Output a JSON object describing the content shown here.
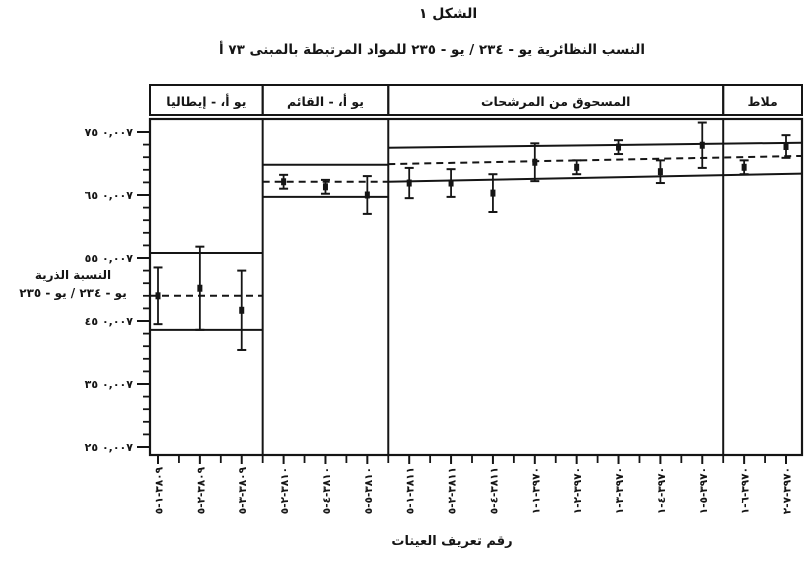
{
  "colors": {
    "ink": "#151515",
    "paper": "#ffffff"
  },
  "chart_data": {
    "type": "scatter",
    "title": "الشكل ١",
    "subtitle": "النسب النظائرية يو - ٢٣٤ / يو - ٢٣٥ للمواد المرتبطة بالمبنى ٧٣ أ",
    "xlabel": "رقم تعريف العينات",
    "ylabel_line1": "النسبة الذرية",
    "ylabel_line2": "يو - ٢٣٤ / يو - ٢٣٥",
    "ylim": [
      0.00724,
      0.00777
    ],
    "grid": false,
    "legend": null,
    "minor_ytick_step": 2e-05,
    "yticks": [
      {
        "value": 0.00775,
        "label": "٠,٠٠٧ ٧٥"
      },
      {
        "value": 0.00765,
        "label": "٠,٠٠٧ ٦٥"
      },
      {
        "value": 0.00755,
        "label": "٠,٠٠٧ ٥٥"
      },
      {
        "value": 0.00745,
        "label": "٠,٠٠٧ ٤٥"
      },
      {
        "value": 0.00735,
        "label": "٠,٠٠٧ ٣٥"
      },
      {
        "value": 0.00725,
        "label": "٠,٠٠٧ ٢٥"
      }
    ],
    "panels": [
      {
        "label": "يو أ، - إيطاليا"
      },
      {
        "label": "يو أ، - القائم"
      },
      {
        "label": "المسحوق من المرشحات"
      },
      {
        "label": "ملاط"
      }
    ],
    "bands": [
      {
        "panels": [
          0,
          0
        ],
        "upper": [
          0.007558,
          0.007558
        ],
        "center": [
          0.00749,
          0.00749
        ],
        "lower": [
          0.007436,
          0.007436
        ]
      },
      {
        "panels": [
          1,
          1
        ],
        "upper": [
          0.007698,
          0.007698
        ],
        "center": [
          0.007671,
          0.007671
        ],
        "lower": [
          0.007647,
          0.007647
        ]
      },
      {
        "panels": [
          2,
          3
        ],
        "upper": [
          0.007725,
          0.007733
        ],
        "center": [
          0.007699,
          0.007712
        ],
        "lower": [
          0.007671,
          0.007684
        ]
      }
    ],
    "points": [
      {
        "id": "٣٨٠٩-١-٥",
        "value": 0.00749,
        "error": 4.5e-05,
        "panel": 0
      },
      {
        "id": "٣٨٠٩-٢-٥",
        "value": 0.007502,
        "error": 6.6e-05,
        "panel": 0
      },
      {
        "id": "٣٨٠٩-٣-٥",
        "value": 0.007467,
        "error": 6.3e-05,
        "panel": 0
      },
      {
        "id": "٣٨١٠-٢-٥",
        "value": 0.007671,
        "error": 1.1e-05,
        "panel": 1
      },
      {
        "id": "٣٨١٠-٤-٥",
        "value": 0.007663,
        "error": 1.1e-05,
        "panel": 1
      },
      {
        "id": "٣٨١٠-٥-٥",
        "value": 0.00765,
        "error": 3e-05,
        "panel": 1
      },
      {
        "id": "٣٨١١-١-٥",
        "value": 0.007669,
        "error": 2.4e-05,
        "panel": 2
      },
      {
        "id": "٣٨١١-٢-٥",
        "value": 0.007669,
        "error": 2.2e-05,
        "panel": 2
      },
      {
        "id": "٣٨١١-٤-٥",
        "value": 0.007653,
        "error": 3e-05,
        "panel": 2
      },
      {
        "id": "٣٩٧٠-١-١",
        "value": 0.007702,
        "error": 3e-05,
        "panel": 2
      },
      {
        "id": "٣٩٧٠-٢-١",
        "value": 0.007694,
        "error": 1.1e-05,
        "panel": 2
      },
      {
        "id": "٣٩٧٠-٣-١",
        "value": 0.007726,
        "error": 1.1e-05,
        "panel": 2
      },
      {
        "id": "٣٩٧٠-٤-١",
        "value": 0.007687,
        "error": 1.8e-05,
        "panel": 2
      },
      {
        "id": "٣٩٧٠-٥-١",
        "value": 0.007729,
        "error": 3.6e-05,
        "panel": 2
      },
      {
        "id": "٣٩٧٠-٦-١",
        "value": 0.007694,
        "error": 1.1e-05,
        "panel": 3
      },
      {
        "id": "٣٩٧٠-٧-٢",
        "value": 0.007727,
        "error": 1.8e-05,
        "panel": 3
      }
    ]
  }
}
